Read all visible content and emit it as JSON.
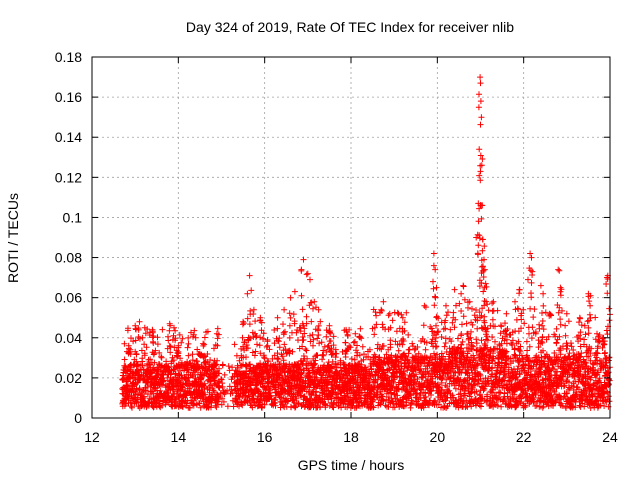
{
  "chart_data": {
    "type": "scatter",
    "title": "Day 324 of 2019, Rate Of TEC Index for receiver nlib",
    "xlabel": "GPS time / hours",
    "ylabel": "ROTI / TECUs",
    "xlim": [
      12,
      24
    ],
    "ylim": [
      0,
      0.18
    ],
    "xticks": [
      12,
      14,
      16,
      18,
      20,
      22,
      24
    ],
    "xtick_labels": [
      "12",
      "14",
      "16",
      "18",
      "20",
      "22",
      "24"
    ],
    "yticks": [
      0,
      0.02,
      0.04,
      0.06,
      0.08,
      0.1,
      0.12,
      0.14,
      0.16,
      0.18
    ],
    "ytick_labels": [
      "0",
      "0.02",
      "0.04",
      "0.06",
      "0.08",
      "0.1",
      "0.12",
      "0.14",
      "0.16",
      "0.18"
    ],
    "grid": true,
    "marker": "+",
    "series": [
      {
        "name": "ROTI",
        "color": "#ff0000",
        "description_range": "dense cloud between 12.7 and 24 h, mostly 0.005-0.035 TECU",
        "spikes": [
          {
            "x": 12.85,
            "y": 0.036
          },
          {
            "x": 13.0,
            "y": 0.046
          },
          {
            "x": 13.1,
            "y": 0.048
          },
          {
            "x": 13.4,
            "y": 0.044
          },
          {
            "x": 13.8,
            "y": 0.047
          },
          {
            "x": 13.9,
            "y": 0.045
          },
          {
            "x": 14.0,
            "y": 0.036
          },
          {
            "x": 14.5,
            "y": 0.032
          },
          {
            "x": 14.6,
            "y": 0.031
          },
          {
            "x": 15.5,
            "y": 0.048
          },
          {
            "x": 15.6,
            "y": 0.062
          },
          {
            "x": 15.65,
            "y": 0.071
          },
          {
            "x": 15.75,
            "y": 0.054
          },
          {
            "x": 15.9,
            "y": 0.05
          },
          {
            "x": 16.3,
            "y": 0.05
          },
          {
            "x": 16.45,
            "y": 0.054
          },
          {
            "x": 16.6,
            "y": 0.06
          },
          {
            "x": 16.7,
            "y": 0.063
          },
          {
            "x": 16.85,
            "y": 0.074
          },
          {
            "x": 16.9,
            "y": 0.079
          },
          {
            "x": 17.0,
            "y": 0.072
          },
          {
            "x": 17.05,
            "y": 0.069
          },
          {
            "x": 17.15,
            "y": 0.058
          },
          {
            "x": 17.25,
            "y": 0.054
          },
          {
            "x": 17.5,
            "y": 0.046
          },
          {
            "x": 17.9,
            "y": 0.043
          },
          {
            "x": 18.1,
            "y": 0.042
          },
          {
            "x": 18.7,
            "y": 0.054
          },
          {
            "x": 18.75,
            "y": 0.058
          },
          {
            "x": 18.9,
            "y": 0.052
          },
          {
            "x": 19.1,
            "y": 0.052
          },
          {
            "x": 19.2,
            "y": 0.05
          },
          {
            "x": 19.7,
            "y": 0.056
          },
          {
            "x": 19.9,
            "y": 0.068
          },
          {
            "x": 19.92,
            "y": 0.082
          },
          {
            "x": 19.95,
            "y": 0.074
          },
          {
            "x": 19.98,
            "y": 0.065
          },
          {
            "x": 20.2,
            "y": 0.056
          },
          {
            "x": 20.4,
            "y": 0.064
          },
          {
            "x": 20.55,
            "y": 0.062
          },
          {
            "x": 20.6,
            "y": 0.066
          },
          {
            "x": 20.75,
            "y": 0.058
          },
          {
            "x": 20.9,
            "y": 0.09
          },
          {
            "x": 20.95,
            "y": 0.107
          },
          {
            "x": 20.97,
            "y": 0.134
          },
          {
            "x": 20.99,
            "y": 0.17
          },
          {
            "x": 21.0,
            "y": 0.167
          },
          {
            "x": 21.01,
            "y": 0.158
          },
          {
            "x": 21.02,
            "y": 0.15
          },
          {
            "x": 21.03,
            "y": 0.126
          },
          {
            "x": 21.05,
            "y": 0.089
          },
          {
            "x": 21.08,
            "y": 0.079
          },
          {
            "x": 21.1,
            "y": 0.074
          },
          {
            "x": 21.12,
            "y": 0.067
          },
          {
            "x": 21.3,
            "y": 0.058
          },
          {
            "x": 21.6,
            "y": 0.052
          },
          {
            "x": 21.8,
            "y": 0.058
          },
          {
            "x": 21.9,
            "y": 0.064
          },
          {
            "x": 22.1,
            "y": 0.069
          },
          {
            "x": 22.15,
            "y": 0.082
          },
          {
            "x": 22.2,
            "y": 0.073
          },
          {
            "x": 22.4,
            "y": 0.066
          },
          {
            "x": 22.45,
            "y": 0.062
          },
          {
            "x": 22.6,
            "y": 0.052
          },
          {
            "x": 22.8,
            "y": 0.074
          },
          {
            "x": 22.85,
            "y": 0.065
          },
          {
            "x": 23.0,
            "y": 0.052
          },
          {
            "x": 23.3,
            "y": 0.05
          },
          {
            "x": 23.5,
            "y": 0.062
          },
          {
            "x": 23.55,
            "y": 0.061
          },
          {
            "x": 23.7,
            "y": 0.042
          },
          {
            "x": 23.85,
            "y": 0.04
          },
          {
            "x": 23.95,
            "y": 0.071
          }
        ]
      }
    ]
  }
}
